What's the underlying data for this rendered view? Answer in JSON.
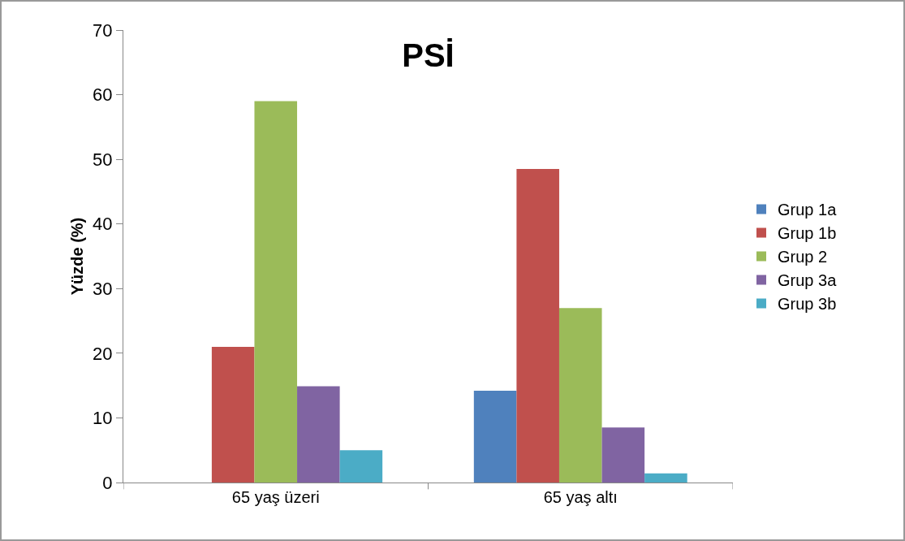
{
  "chart_data": {
    "type": "bar",
    "title": "PSİ",
    "ylabel": "Yüzde (%)",
    "categories": [
      "65 yaş üzeri",
      "65 yaş altı"
    ],
    "series": [
      {
        "name": "Grup 1a",
        "color": "#4f81bd",
        "values": [
          0,
          14.2
        ]
      },
      {
        "name": "Grup 1b",
        "color": "#c0504d",
        "values": [
          21,
          48.5
        ]
      },
      {
        "name": "Grup 2",
        "color": "#9bbb59",
        "values": [
          59,
          27
        ]
      },
      {
        "name": "Grup 3a",
        "color": "#8064a2",
        "values": [
          14.9,
          8.5
        ]
      },
      {
        "name": "Grup 3b",
        "color": "#4bacc6",
        "values": [
          5,
          1.4
        ]
      }
    ],
    "ylim": [
      0,
      70
    ],
    "yticks": [
      0,
      10,
      20,
      30,
      40,
      50,
      60,
      70
    ],
    "grid": false,
    "legend": "right"
  }
}
